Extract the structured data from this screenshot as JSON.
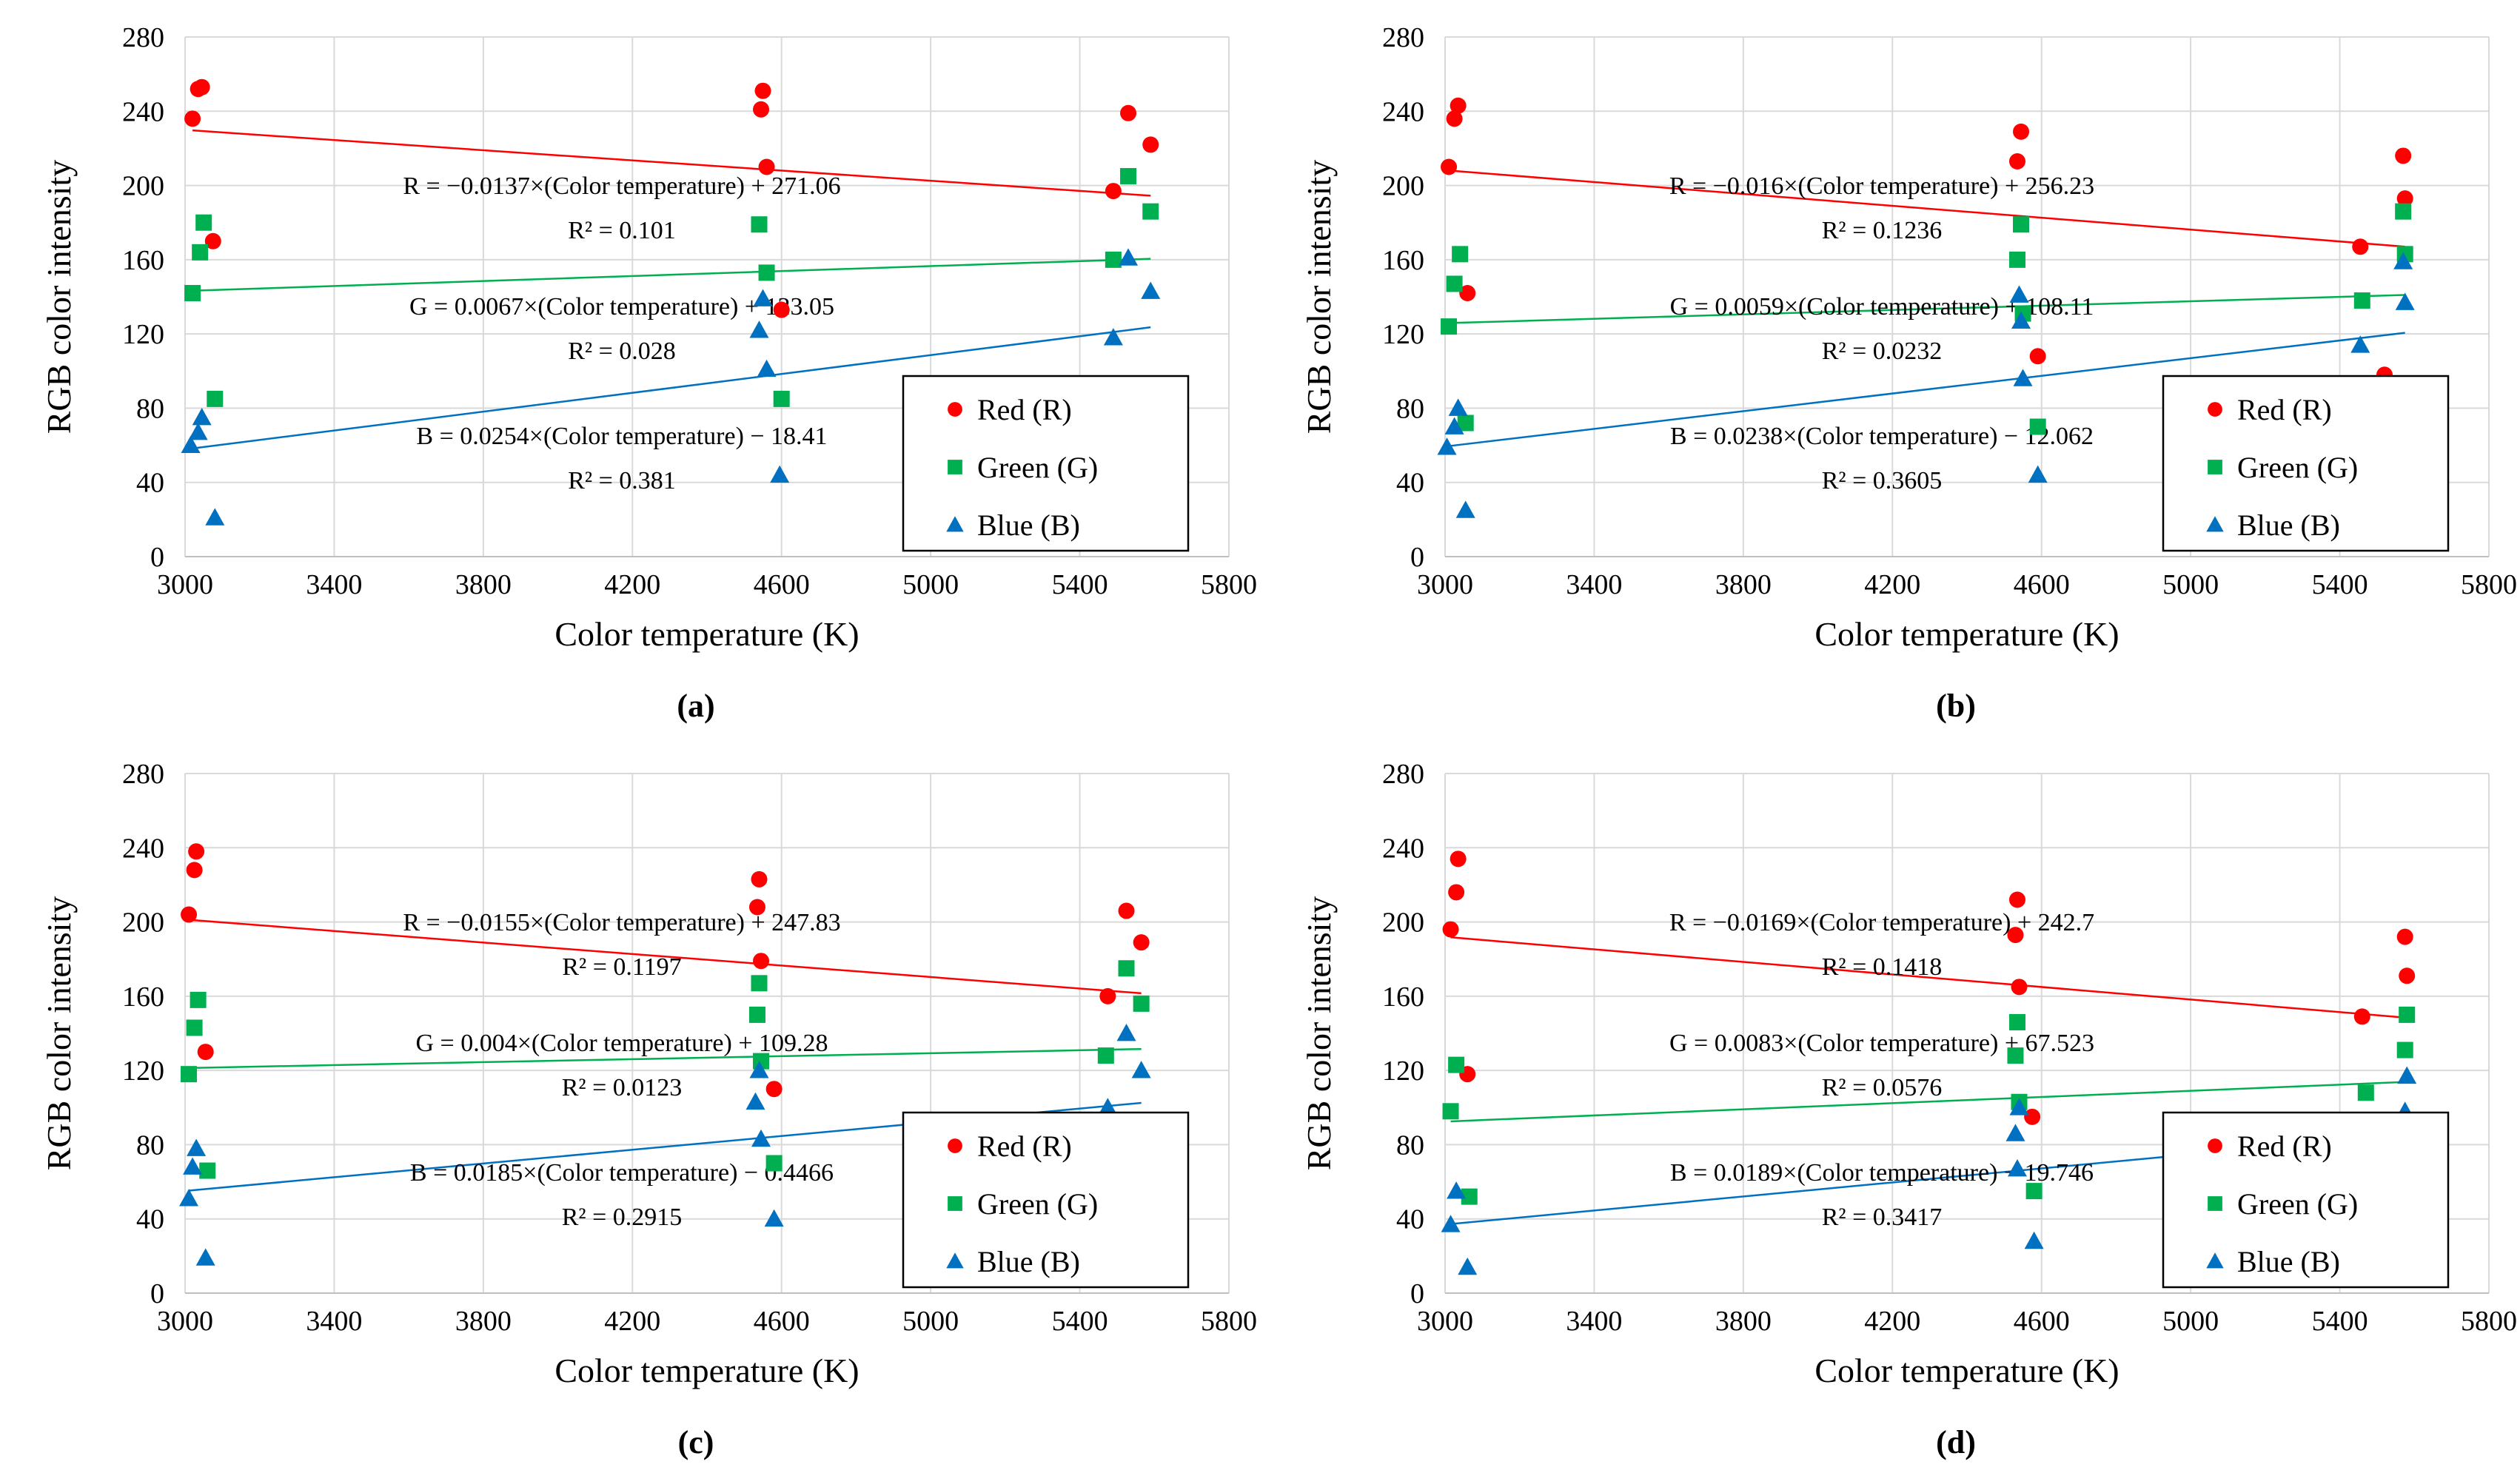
{
  "colors": {
    "red": "#ff0000",
    "green": "#00b050",
    "blue": "#0070c0"
  },
  "chart_data": [
    {
      "type": "scatter",
      "panel_label": "(a)",
      "xlabel": "Color temperature (K)",
      "ylabel": "RGB color intensity",
      "xlim": [
        3000,
        5800
      ],
      "ylim": [
        0,
        280
      ],
      "xticks": [
        3000,
        3400,
        3800,
        4200,
        4600,
        5000,
        5400,
        5800
      ],
      "yticks": [
        0,
        40,
        80,
        120,
        160,
        200,
        240,
        280
      ],
      "grid": true,
      "legend_position": "bottom-right",
      "series": [
        {
          "name": "Red (R)",
          "color": "#ff0000",
          "marker": "circle",
          "x": [
            3020,
            3035,
            3045,
            3075,
            4545,
            4550,
            4560,
            4600,
            5490,
            5530,
            5590
          ],
          "y": [
            236,
            252,
            253,
            170,
            241,
            251,
            210,
            133,
            197,
            239,
            222
          ],
          "fit": {
            "slope": -0.0137,
            "intercept": 271.06
          }
        },
        {
          "name": "Green (G)",
          "color": "#00b050",
          "marker": "square",
          "x": [
            3020,
            3040,
            3050,
            3080,
            4540,
            4560,
            4600,
            5490,
            5530,
            5590
          ],
          "y": [
            142,
            164,
            180,
            85,
            179,
            153,
            85,
            160,
            205,
            186
          ],
          "fit": {
            "slope": 0.0067,
            "intercept": 123.05
          }
        },
        {
          "name": "Blue (B)",
          "color": "#0070c0",
          "marker": "triangle",
          "x": [
            3015,
            3035,
            3045,
            3080,
            4540,
            4550,
            4560,
            4595,
            5490,
            5530,
            5590
          ],
          "y": [
            60,
            67,
            75,
            21,
            122,
            139,
            101,
            44,
            118,
            161,
            143
          ],
          "fit": {
            "slope": 0.0254,
            "intercept": -18.41
          }
        }
      ],
      "annotations": [
        "R = −0.0137×(Color temperature) + 271.06",
        "R² = 0.101",
        "G = 0.0067×(Color temperature) + 123.05",
        "R² = 0.028",
        "B = 0.0254×(Color temperature) − 18.41",
        "R² = 0.381"
      ]
    },
    {
      "type": "scatter",
      "panel_label": "(b)",
      "xlabel": "Color temperature (K)",
      "ylabel": "RGB color intensity",
      "xlim": [
        3000,
        5800
      ],
      "ylim": [
        0,
        280
      ],
      "xticks": [
        3000,
        3400,
        3800,
        4200,
        4600,
        5000,
        5400,
        5800
      ],
      "yticks": [
        0,
        40,
        80,
        120,
        160,
        200,
        240,
        280
      ],
      "grid": true,
      "legend_position": "bottom-right",
      "series": [
        {
          "name": "Red (R)",
          "color": "#ff0000",
          "marker": "circle",
          "x": [
            3010,
            3025,
            3035,
            3060,
            4535,
            4545,
            4590,
            5455,
            5520,
            5570,
            5575
          ],
          "y": [
            210,
            236,
            243,
            142,
            213,
            229,
            108,
            167,
            98,
            216,
            193
          ],
          "fit": {
            "slope": -0.016,
            "intercept": 256.23
          }
        },
        {
          "name": "Green (G)",
          "color": "#00b050",
          "marker": "square",
          "x": [
            3010,
            3025,
            3040,
            3055,
            4535,
            4545,
            4550,
            4590,
            5460,
            5570,
            5575
          ],
          "y": [
            124,
            147,
            163,
            72,
            160,
            179,
            131,
            70,
            138,
            186,
            163
          ],
          "fit": {
            "slope": 0.0059,
            "intercept": 108.11
          }
        },
        {
          "name": "Blue (B)",
          "color": "#0070c0",
          "marker": "triangle",
          "x": [
            3005,
            3025,
            3035,
            3055,
            4540,
            4545,
            4550,
            4590,
            5455,
            5570,
            5575
          ],
          "y": [
            59,
            70,
            80,
            25,
            141,
            127,
            96,
            44,
            114,
            159,
            137
          ],
          "fit": {
            "slope": 0.0238,
            "intercept": -12.062
          }
        }
      ],
      "annotations": [
        "R = −0.016×(Color temperature) + 256.23",
        "R² = 0.1236",
        "G = 0.0059×(Color temperature) + 108.11",
        "R² = 0.0232",
        "B = 0.0238×(Color temperature) − 12.062",
        "R² = 0.3605"
      ]
    },
    {
      "type": "scatter",
      "panel_label": "(c)",
      "xlabel": "Color temperature (K)",
      "ylabel": "RGB color intensity",
      "xlim": [
        3000,
        5800
      ],
      "ylim": [
        0,
        280
      ],
      "xticks": [
        3000,
        3400,
        3800,
        4200,
        4600,
        5000,
        5400,
        5800
      ],
      "yticks": [
        0,
        40,
        80,
        120,
        160,
        200,
        240,
        280
      ],
      "grid": true,
      "legend_position": "bottom-right",
      "series": [
        {
          "name": "Red (R)",
          "color": "#ff0000",
          "marker": "circle",
          "x": [
            3010,
            3025,
            3030,
            3055,
            4535,
            4540,
            4545,
            4580,
            5475,
            5525,
            5565
          ],
          "y": [
            204,
            228,
            238,
            130,
            208,
            223,
            179,
            110,
            160,
            206,
            189
          ],
          "fit": {
            "slope": -0.0155,
            "intercept": 247.83
          }
        },
        {
          "name": "Green (G)",
          "color": "#00b050",
          "marker": "square",
          "x": [
            3010,
            3025,
            3035,
            3060,
            4535,
            4540,
            4545,
            4580,
            5470,
            5525,
            5565
          ],
          "y": [
            118,
            143,
            158,
            66,
            150,
            167,
            125,
            70,
            128,
            175,
            156
          ],
          "fit": {
            "slope": 0.004,
            "intercept": 109.28
          }
        },
        {
          "name": "Blue (B)",
          "color": "#0070c0",
          "marker": "triangle",
          "x": [
            3010,
            3020,
            3030,
            3055,
            4530,
            4540,
            4545,
            4580,
            5475,
            5525,
            5565
          ],
          "y": [
            51,
            68,
            78,
            19,
            103,
            120,
            83,
            40,
            100,
            140,
            120
          ],
          "fit": {
            "slope": 0.0185,
            "intercept": -0.4466
          }
        }
      ],
      "annotations": [
        "R = −0.0155×(Color temperature) + 247.83",
        "R² = 0.1197",
        "G = 0.004×(Color temperature) + 109.28",
        "R² = 0.0123",
        "B = 0.0185×(Color temperature) − 0.4466",
        "R² = 0.2915"
      ]
    },
    {
      "type": "scatter",
      "panel_label": "(d)",
      "xlabel": "Color temperature (K)",
      "ylabel": "RGB color intensity",
      "xlim": [
        3000,
        5800
      ],
      "ylim": [
        0,
        280
      ],
      "xticks": [
        3000,
        3400,
        3800,
        4200,
        4600,
        5000,
        5400,
        5800
      ],
      "yticks": [
        0,
        40,
        80,
        120,
        160,
        200,
        240,
        280
      ],
      "grid": true,
      "legend_position": "bottom-right",
      "series": [
        {
          "name": "Red (R)",
          "color": "#ff0000",
          "marker": "circle",
          "x": [
            3015,
            3030,
            3035,
            3060,
            4530,
            4535,
            4540,
            4575,
            5460,
            5575,
            5580
          ],
          "y": [
            196,
            216,
            234,
            118,
            193,
            212,
            165,
            95,
            149,
            192,
            171
          ],
          "fit": {
            "slope": -0.0169,
            "intercept": 242.7
          }
        },
        {
          "name": "Green (G)",
          "color": "#00b050",
          "marker": "square",
          "x": [
            3015,
            3030,
            3065,
            4530,
            4535,
            4540,
            4580,
            5470,
            5575,
            5580
          ],
          "y": [
            98,
            123,
            52,
            128,
            146,
            103,
            55,
            108,
            131,
            150
          ],
          "fit": {
            "slope": 0.0083,
            "intercept": 67.523
          }
        },
        {
          "name": "Blue (B)",
          "color": "#0070c0",
          "marker": "triangle",
          "x": [
            3015,
            3030,
            3060,
            4530,
            4535,
            4540,
            4580,
            5575,
            5580
          ],
          "y": [
            37,
            55,
            14,
            86,
            67,
            100,
            28,
            98,
            117
          ],
          "fit": {
            "slope": 0.0189,
            "intercept": -19.746
          }
        }
      ],
      "annotations": [
        "R = −0.0169×(Color temperature) + 242.7",
        "R² = 0.1418",
        "G = 0.0083×(Color temperature) + 67.523",
        "R² = 0.0576",
        "B = 0.0189×(Color temperature) − 19.746",
        "R² = 0.3417"
      ]
    }
  ]
}
